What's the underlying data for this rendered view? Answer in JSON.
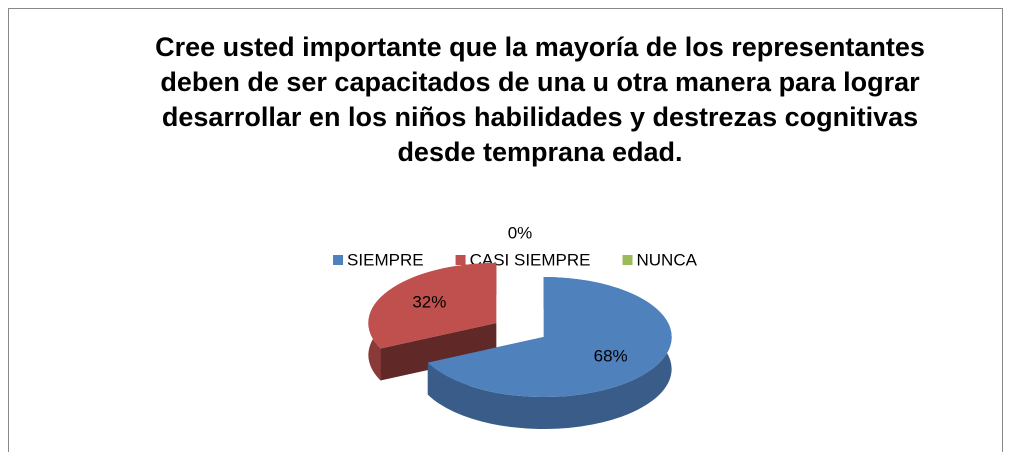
{
  "chart_data": {
    "type": "pie3d",
    "title": "Cree usted importante que la mayoría de los representantes deben de ser capacitados de una u otra manera para lograr desarrollar en los niños habilidades y destrezas cognitivas  desde temprana edad.",
    "categories": [
      "SIEMPRE",
      "CASI SIEMPRE",
      "NUNCA"
    ],
    "values": [
      68,
      32,
      0
    ],
    "value_labels": [
      "68%",
      "32%",
      "0%"
    ],
    "colors": [
      "#4f81bd",
      "#c0504d",
      "#9bbb59"
    ],
    "legend": "top"
  }
}
